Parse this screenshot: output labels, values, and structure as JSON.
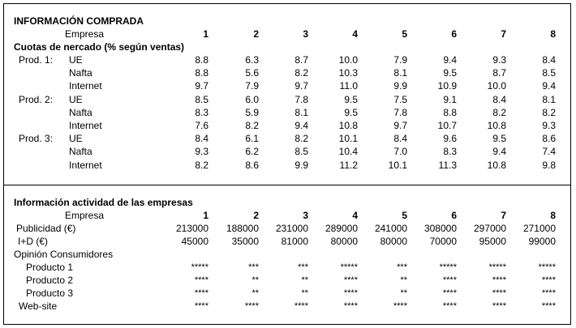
{
  "section1": {
    "title": "INFORMACIÓN COMPRADA",
    "empresa_label": "Empresa",
    "companies": [
      "1",
      "2",
      "3",
      "4",
      "5",
      "6",
      "7",
      "8"
    ],
    "subtitle": "Cuotas de nercado (% según ventas)",
    "rows": [
      {
        "prod": "Prod. 1:",
        "market": "UE",
        "values": [
          "8.8",
          "6.3",
          "8.7",
          "10.0",
          "7.9",
          "9.4",
          "9.3",
          "8.4"
        ]
      },
      {
        "prod": "",
        "market": "Nafta",
        "values": [
          "8.8",
          "5.6",
          "8.2",
          "10.3",
          "8.1",
          "9.5",
          "8.7",
          "8.5"
        ]
      },
      {
        "prod": "",
        "market": "Internet",
        "values": [
          "9.7",
          "7.9",
          "9.7",
          "11.0",
          "9.9",
          "10.9",
          "10.0",
          "9.4"
        ]
      },
      {
        "prod": "Prod. 2:",
        "market": "UE",
        "values": [
          "8.5",
          "6.0",
          "7.8",
          "9.5",
          "7.5",
          "9.1",
          "8.4",
          "8.1"
        ]
      },
      {
        "prod": "",
        "market": "Nafta",
        "values": [
          "8.3",
          "5.9",
          "8.1",
          "9.5",
          "7.8",
          "8.8",
          "8.2",
          "8.2"
        ]
      },
      {
        "prod": "",
        "market": "Internet",
        "values": [
          "7.6",
          "8.2",
          "9.4",
          "10.8",
          "9.7",
          "10.7",
          "10.8",
          "9.3"
        ]
      },
      {
        "prod": "Prod. 3:",
        "market": "UE",
        "values": [
          "8.4",
          "6.1",
          "8.2",
          "10.1",
          "8.4",
          "9.6",
          "9.5",
          "8.6"
        ]
      },
      {
        "prod": "",
        "market": "Nafta",
        "values": [
          "9.3",
          "6.2",
          "8.5",
          "10.4",
          "7.0",
          "8.3",
          "9.4",
          "7.4"
        ]
      },
      {
        "prod": "",
        "market": "Internet",
        "values": [
          "8.2",
          "8.6",
          "9.9",
          "11.2",
          "10.1",
          "11.3",
          "10.8",
          "9.8"
        ]
      }
    ]
  },
  "section2": {
    "title": "Información actividad de las empresas",
    "empresa_label": "Empresa",
    "companies": [
      "1",
      "2",
      "3",
      "4",
      "5",
      "6",
      "7",
      "8"
    ],
    "publicidad_label": "Publicidad (€)",
    "publicidad": [
      "213000",
      "188000",
      "231000",
      "289000",
      "241000",
      "308000",
      "297000",
      "271000"
    ],
    "id_label": "I+D (€)",
    "id": [
      "45000",
      "35000",
      "81000",
      "80000",
      "80000",
      "70000",
      "95000",
      "99000"
    ],
    "opinion_label": "Opinión Consumidores",
    "opinion_rows": [
      {
        "label": "Producto 1",
        "values": [
          "*****",
          "***",
          "***",
          "*****",
          "***",
          "*****",
          "*****",
          "*****"
        ]
      },
      {
        "label": "Producto 2",
        "values": [
          "****",
          "**",
          "**",
          "****",
          "**",
          "****",
          "****",
          "****"
        ]
      },
      {
        "label": "Producto 3",
        "values": [
          "****",
          "**",
          "**",
          "****",
          "**",
          "****",
          "****",
          "****"
        ]
      }
    ],
    "website_label": "Web-site",
    "website": [
      "****",
      "****",
      "****",
      "****",
      "****",
      "****",
      "****",
      "****"
    ]
  }
}
